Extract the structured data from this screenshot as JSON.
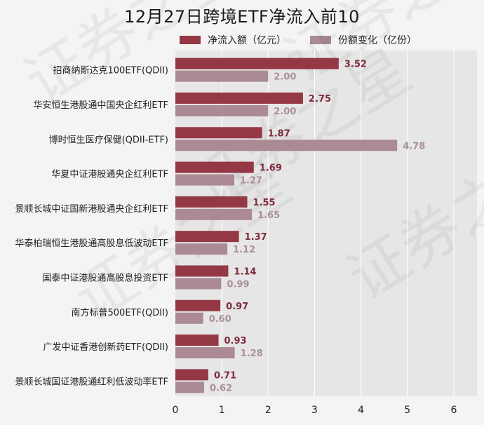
{
  "chart_data": {
    "type": "bar",
    "orientation": "horizontal",
    "title": "12月27日跨境ETF净流入前10",
    "categories": [
      "招商纳斯达克100ETF(QDII)",
      "华安恒生港股通中国央企红利ETF",
      "博时恒生医疗保健(QDII-ETF)",
      "华夏中证港股通央企红利ETF",
      "景顺长城中证国新港股通央企红利ETF",
      "华泰柏瑞恒生港股通高股息低波动ETF",
      "国泰中证港股通高股息投资ETF",
      "南方标普500ETF(QDII)",
      "广发中证香港创新药ETF(QDII)",
      "景顺长城国证港股通红利低波动率ETF"
    ],
    "series": [
      {
        "name": "净流入额（亿元）",
        "color": "#953846",
        "values": [
          3.52,
          2.75,
          1.87,
          1.69,
          1.55,
          1.37,
          1.14,
          0.97,
          0.93,
          0.71
        ],
        "labels": [
          "3.52",
          "2.75",
          "1.87",
          "1.69",
          "1.55",
          "1.37",
          "1.14",
          "0.97",
          "0.93",
          "0.71"
        ]
      },
      {
        "name": "份额变化（亿份）",
        "color": "#ab8a93",
        "values": [
          2.0,
          2.0,
          4.78,
          1.27,
          1.65,
          1.12,
          0.99,
          0.6,
          1.28,
          0.62
        ],
        "labels": [
          "2.00",
          "2.00",
          "4.78",
          "1.27",
          "1.65",
          "1.12",
          "0.99",
          "0.60",
          "1.28",
          "0.62"
        ]
      }
    ],
    "xlim": [
      0,
      6.5
    ],
    "xticks": [
      0,
      1,
      2,
      3,
      4,
      5,
      6
    ],
    "xtick_labels": [
      "0",
      "1",
      "2",
      "3",
      "4",
      "5",
      "6"
    ],
    "grid": true,
    "legend_position": "top",
    "plot_background": "#e6e6e6",
    "watermark": "证券之星"
  }
}
